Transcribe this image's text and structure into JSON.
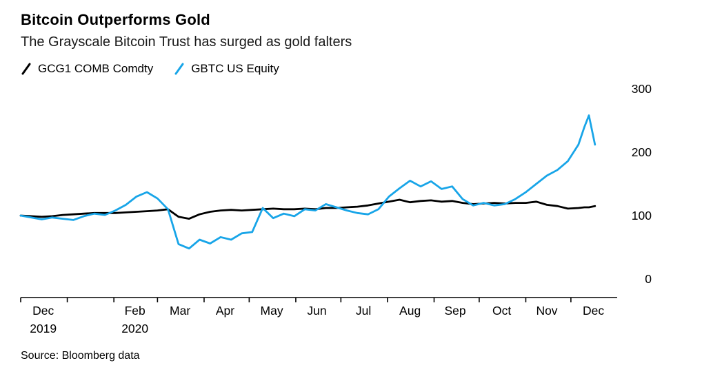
{
  "chart_data": {
    "type": "line",
    "title": "Bitcoin Outperforms Gold",
    "subtitle": "The Grayscale Bitcoin Trust has surged as gold falters",
    "source": "Source: Bloomberg data",
    "legend_position": "top-left",
    "grid": "off",
    "y_axis_side": "right",
    "ylim": [
      0,
      300
    ],
    "yticks": [
      0,
      100,
      200,
      300
    ],
    "x_unit": "days since 2019-12-01 (series indexed to 100 at start)",
    "x": [
      0,
      7,
      14,
      21,
      28,
      35,
      42,
      49,
      56,
      63,
      70,
      77,
      84,
      91,
      98,
      105,
      112,
      119,
      126,
      133,
      140,
      147,
      154,
      161,
      168,
      175,
      182,
      189,
      196,
      203,
      210,
      217,
      224,
      231,
      238,
      245,
      252,
      259,
      266,
      273,
      280,
      287,
      294,
      301,
      308,
      315,
      322,
      329,
      336,
      343,
      350,
      357,
      364,
      371,
      375,
      378,
      382
    ],
    "series": [
      {
        "name": "GCG1 COMB Comdty",
        "color": "#000000",
        "values": [
          100,
          99,
          98,
          99,
          101,
          102,
          103,
          104,
          104,
          104,
          105,
          106,
          107,
          108,
          110,
          98,
          95,
          102,
          106,
          108,
          109,
          108,
          109,
          110,
          111,
          110,
          110,
          111,
          110,
          112,
          112,
          113,
          114,
          116,
          119,
          122,
          125,
          121,
          123,
          124,
          122,
          123,
          120,
          118,
          119,
          120,
          119,
          120,
          120,
          122,
          117,
          115,
          111,
          112,
          113,
          113,
          115
        ]
      },
      {
        "name": "GBTC US Equity",
        "color": "#18a5e8",
        "values": [
          100,
          97,
          94,
          97,
          95,
          93,
          99,
          103,
          101,
          108,
          117,
          130,
          137,
          127,
          110,
          55,
          48,
          62,
          56,
          66,
          62,
          72,
          74,
          112,
          96,
          103,
          99,
          110,
          108,
          118,
          113,
          108,
          104,
          102,
          110,
          130,
          143,
          155,
          146,
          154,
          142,
          146,
          126,
          116,
          120,
          116,
          118,
          126,
          137,
          150,
          163,
          172,
          186,
          212,
          240,
          258,
          212
        ]
      }
    ],
    "axis_tick_days": [
      0,
      31,
      62,
      91,
      122,
      152,
      183,
      213,
      244,
      275,
      305,
      336,
      366
    ],
    "xticks": [
      {
        "day": 15,
        "label": "Dec",
        "sub": "2019"
      },
      {
        "day": 76,
        "label": "Feb",
        "sub": "2020"
      },
      {
        "day": 106,
        "label": "Mar"
      },
      {
        "day": 136,
        "label": "Apr"
      },
      {
        "day": 167,
        "label": "May"
      },
      {
        "day": 197,
        "label": "Jun"
      },
      {
        "day": 228,
        "label": "Jul"
      },
      {
        "day": 259,
        "label": "Aug"
      },
      {
        "day": 289,
        "label": "Sep"
      },
      {
        "day": 320,
        "label": "Oct"
      },
      {
        "day": 350,
        "label": "Nov"
      },
      {
        "day": 381,
        "label": "Dec"
      }
    ]
  }
}
